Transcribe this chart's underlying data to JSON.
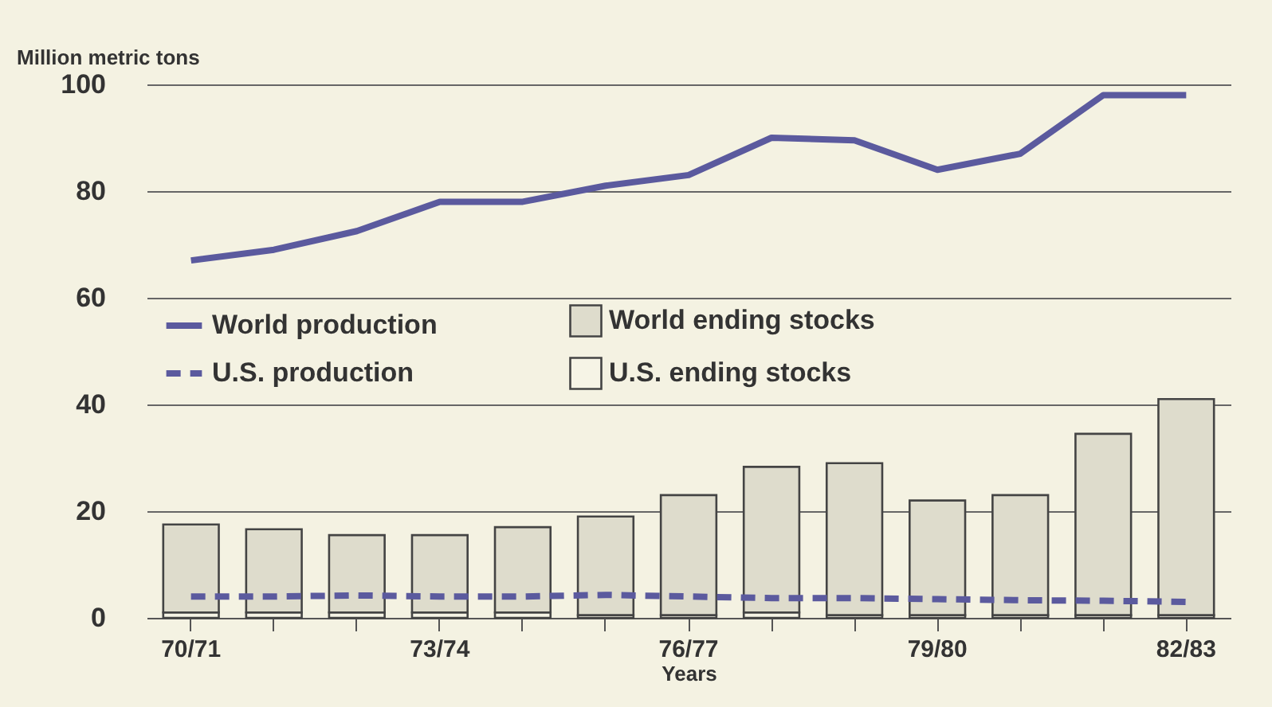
{
  "chart_data": {
    "type": "bar",
    "ylabel": "Million metric tons",
    "xlabel": "Years",
    "categories": [
      "70/71",
      null,
      null,
      "73/74",
      null,
      null,
      "76/77",
      null,
      null,
      "79/80",
      null,
      null,
      "82/83"
    ],
    "stacked": true,
    "ylim": [
      0,
      100
    ],
    "yticks": [
      0,
      20,
      40,
      60,
      80,
      100
    ],
    "grid": "y",
    "legend": "left",
    "series": [
      {
        "name": "U.S. ending stocks",
        "color": "#f6f4e6",
        "values": [
          1,
          1,
          1,
          1,
          1,
          0.5,
          0.5,
          1,
          0.5,
          0.5,
          0.5,
          0.5,
          0.5
        ]
      },
      {
        "name": "World ending stocks",
        "color": "#dedccc",
        "values": [
          16.5,
          15.6,
          14.5,
          14.5,
          16,
          18.5,
          22.5,
          27.3,
          28.5,
          21.5,
          22.5,
          34,
          40.5
        ]
      },
      {
        "name": "World production",
        "type": "line",
        "color": "#5b5a9e",
        "line_style": "solid",
        "values": [
          67,
          69,
          72.5,
          78,
          78,
          81,
          83,
          90,
          89.5,
          84,
          87,
          98,
          98
        ]
      },
      {
        "name": "U.S. production",
        "type": "line",
        "color": "#5b5a9e",
        "line_style": "dashed",
        "values": [
          4,
          4,
          4.2,
          4,
          4,
          4.3,
          4,
          3.7,
          3.7,
          3.5,
          3.3,
          3.2,
          3
        ]
      }
    ]
  }
}
